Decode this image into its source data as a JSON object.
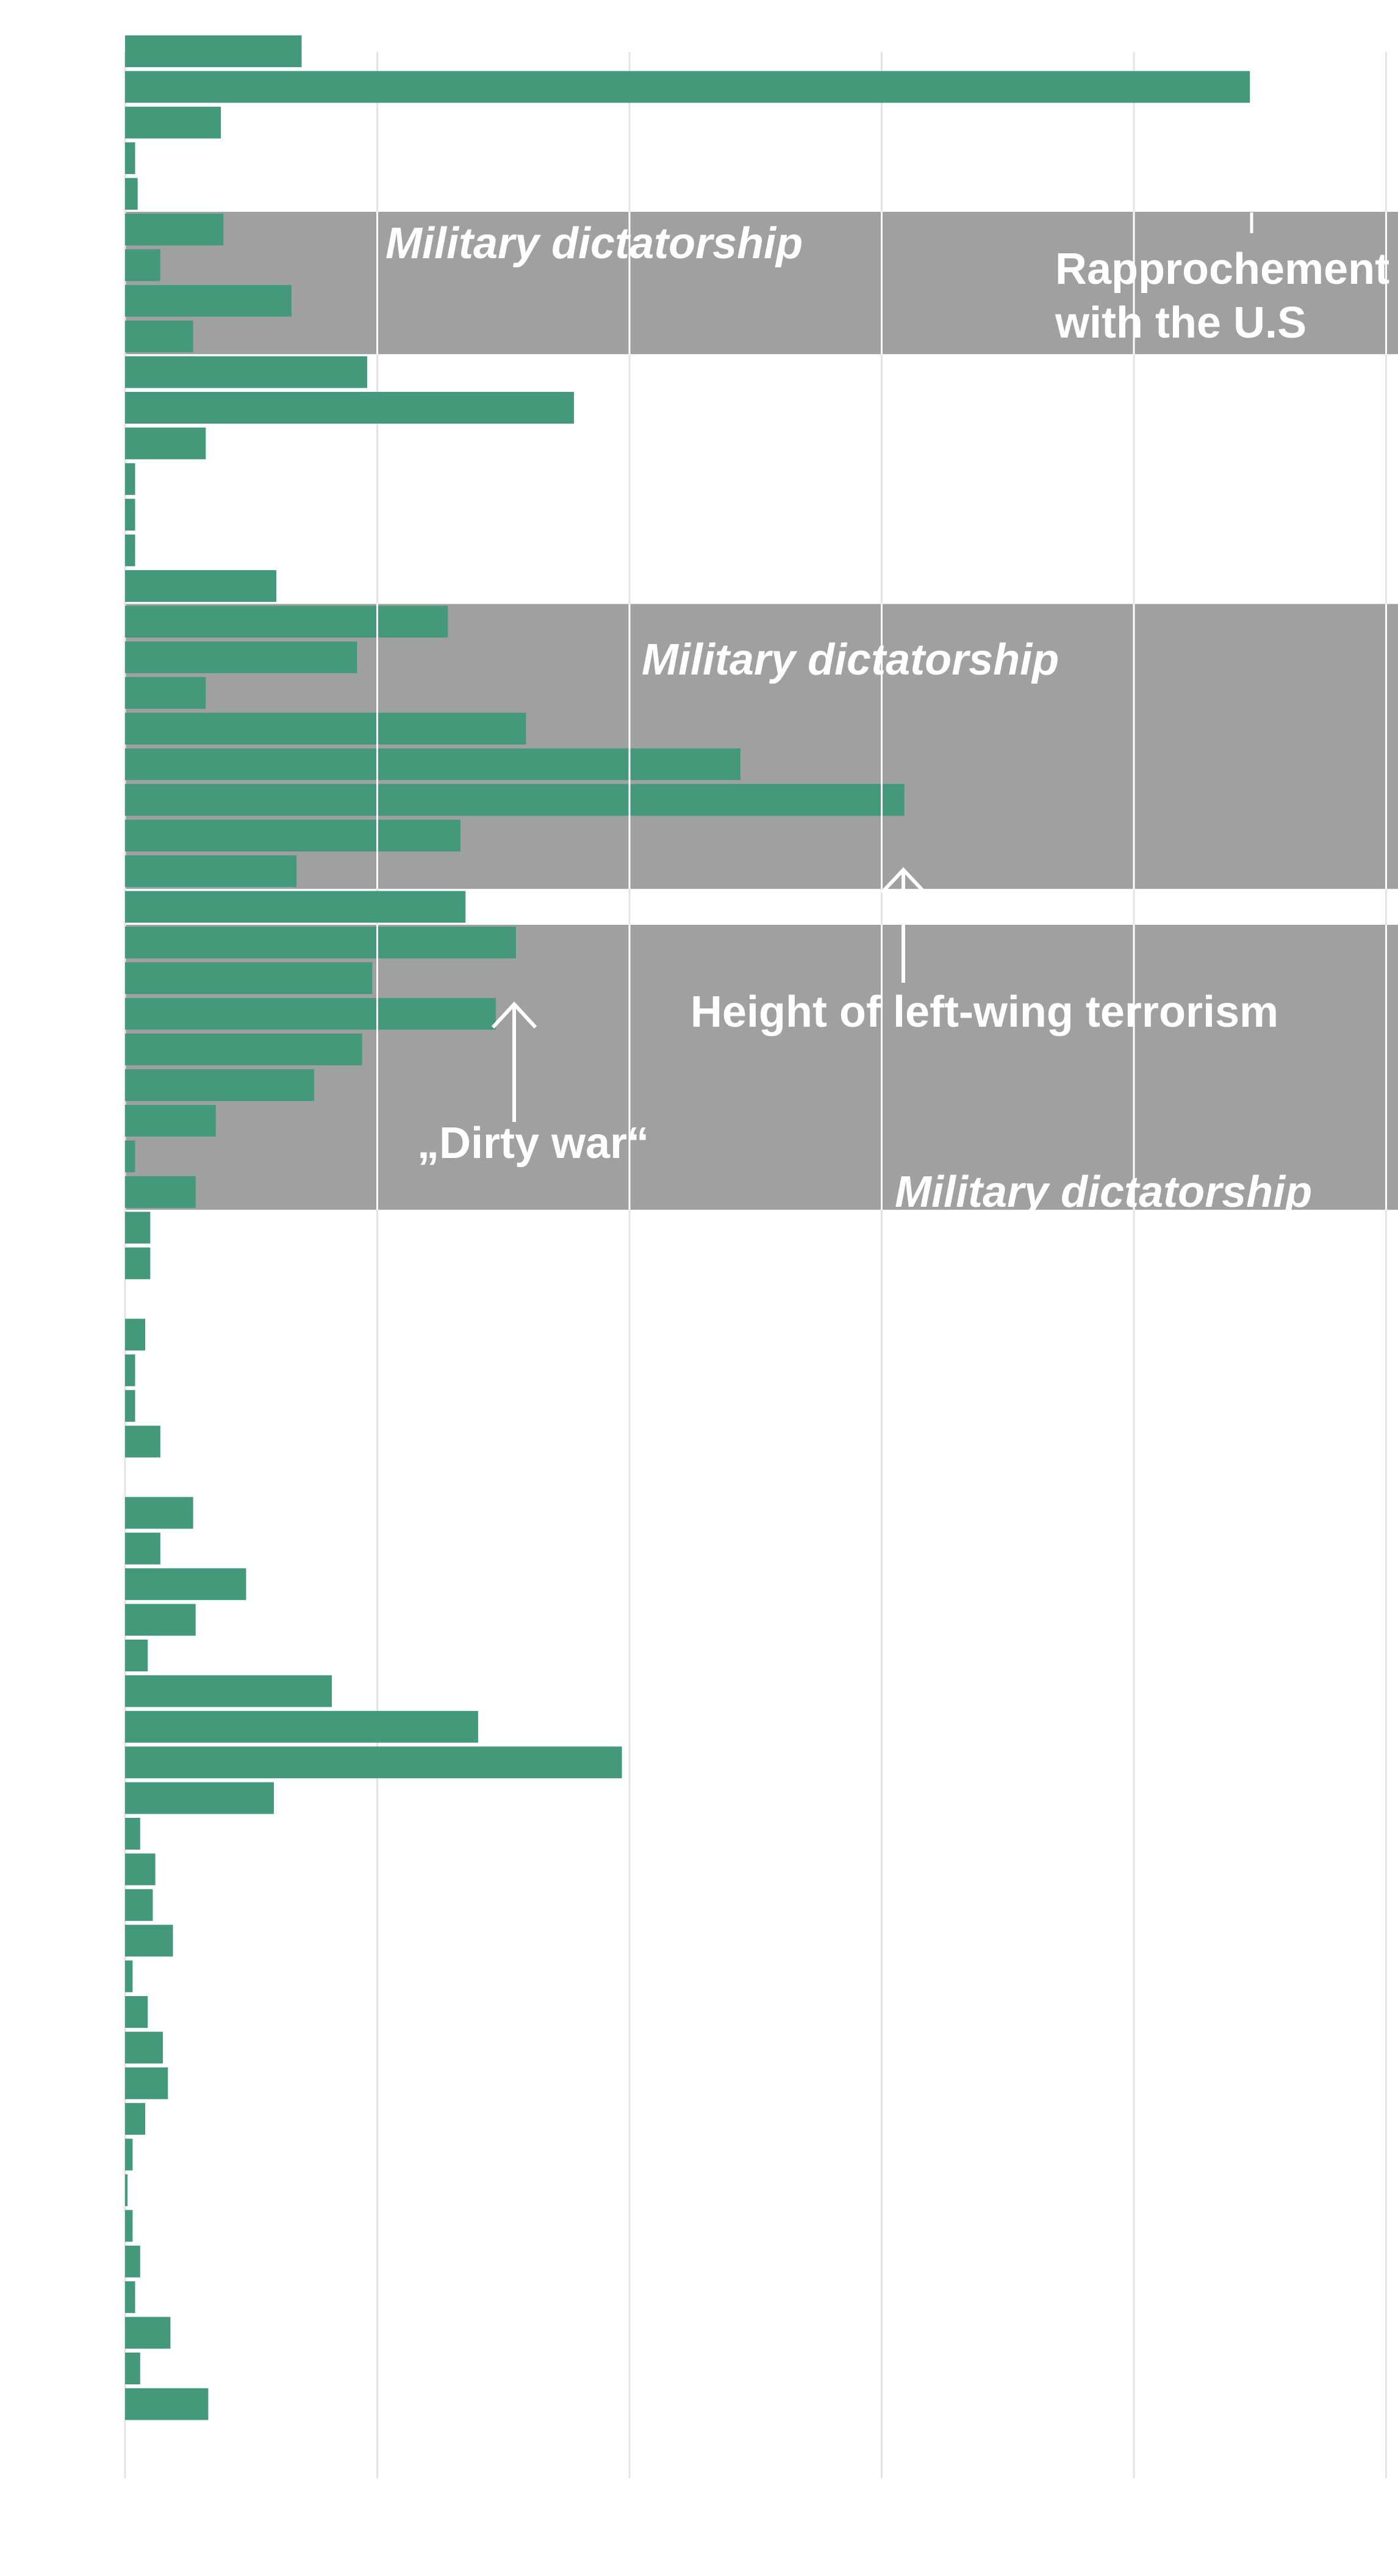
{
  "colors": {
    "bar": "#44997a",
    "band": "#a0a0a0",
    "grid": "#e4e4e4",
    "gridOverBand": "#ffffff",
    "annotation": "#ffffff"
  },
  "chart_data": {
    "type": "bar",
    "orientation": "horizontal",
    "xlim": [
      0,
      5
    ],
    "grid": true,
    "values": [
      0.7,
      4.46,
      0.38,
      0.04,
      0.05,
      0.39,
      0.14,
      0.66,
      0.27,
      0.96,
      1.78,
      0.32,
      0.04,
      0.04,
      0.04,
      0.6,
      1.28,
      0.92,
      0.32,
      1.59,
      2.44,
      3.09,
      1.33,
      0.68,
      1.35,
      1.55,
      0.98,
      1.47,
      0.94,
      0.75,
      0.36,
      0.04,
      0.28,
      0.1,
      0.1,
      0.0,
      0.08,
      0.04,
      0.04,
      0.14,
      0.0,
      0.27,
      0.14,
      0.48,
      0.28,
      0.09,
      0.82,
      1.4,
      1.97,
      0.59,
      0.06,
      0.12,
      0.11,
      0.19,
      0.03,
      0.09,
      0.15,
      0.17,
      0.08,
      0.03,
      0.01,
      0.03,
      0.06,
      0.04,
      0.18,
      0.06,
      0.33
    ],
    "bands": [
      {
        "from": 5,
        "to": 8,
        "label": "Military dictatorship"
      },
      {
        "from": 16,
        "to": 23,
        "label": "Military dictatorship"
      },
      {
        "from": 25,
        "to": 32,
        "label": "Military dictatorship"
      }
    ],
    "annotations": {
      "rapprochement_line1": "Rapprochement",
      "rapprochement_line2": "with the U.S",
      "left_wing": "Height of left-wing terrorism",
      "dirty_war": "„Dirty war“"
    }
  }
}
